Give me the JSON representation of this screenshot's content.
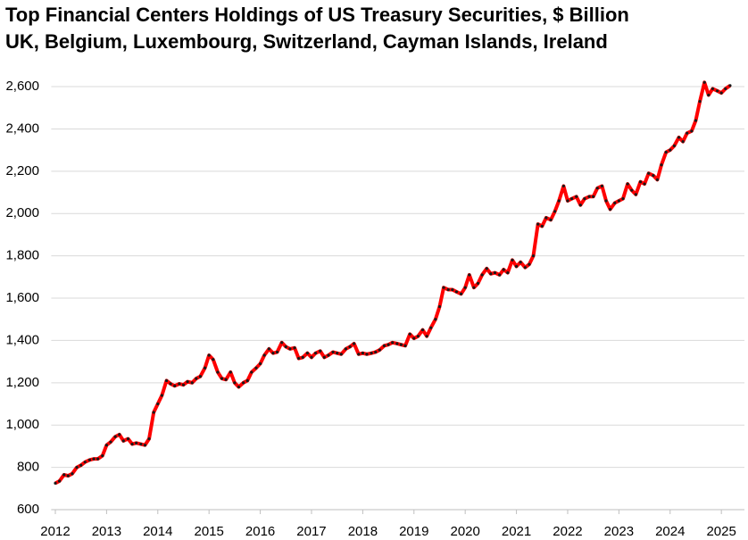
{
  "chart_data": {
    "type": "line",
    "title": "Top Financial Centers Holdings of US Treasury Securities, $ Billion",
    "subtitle": "UK, Belgium, Luxembourg, Switzerland, Cayman Islands, Ireland",
    "x": [
      2012,
      2012.08,
      2012.17,
      2012.25,
      2012.33,
      2012.42,
      2012.5,
      2012.58,
      2012.67,
      2012.75,
      2012.83,
      2012.92,
      2013,
      2013.08,
      2013.17,
      2013.25,
      2013.33,
      2013.42,
      2013.5,
      2013.58,
      2013.67,
      2013.75,
      2013.83,
      2013.92,
      2014,
      2014.08,
      2014.17,
      2014.25,
      2014.33,
      2014.42,
      2014.5,
      2014.58,
      2014.67,
      2014.75,
      2014.83,
      2014.92,
      2015,
      2015.08,
      2015.17,
      2015.25,
      2015.33,
      2015.42,
      2015.5,
      2015.58,
      2015.67,
      2015.75,
      2015.83,
      2015.92,
      2016,
      2016.08,
      2016.17,
      2016.25,
      2016.33,
      2016.42,
      2016.5,
      2016.58,
      2016.67,
      2016.75,
      2016.83,
      2016.92,
      2017,
      2017.08,
      2017.17,
      2017.25,
      2017.33,
      2017.42,
      2017.5,
      2017.58,
      2017.67,
      2017.75,
      2017.83,
      2017.92,
      2018,
      2018.08,
      2018.17,
      2018.25,
      2018.33,
      2018.42,
      2018.5,
      2018.58,
      2018.67,
      2018.75,
      2018.83,
      2018.92,
      2019,
      2019.08,
      2019.17,
      2019.25,
      2019.33,
      2019.42,
      2019.5,
      2019.58,
      2019.67,
      2019.75,
      2019.83,
      2019.92,
      2020,
      2020.08,
      2020.17,
      2020.25,
      2020.33,
      2020.42,
      2020.5,
      2020.58,
      2020.67,
      2020.75,
      2020.83,
      2020.92,
      2021,
      2021.08,
      2021.17,
      2021.25,
      2021.33,
      2021.42,
      2021.5,
      2021.58,
      2021.67,
      2021.75,
      2021.83,
      2021.92,
      2022,
      2022.08,
      2022.17,
      2022.25,
      2022.33,
      2022.42,
      2022.5,
      2022.58,
      2022.67,
      2022.75,
      2022.83,
      2022.92,
      2023,
      2023.08,
      2023.17,
      2023.25,
      2023.33,
      2023.42,
      2023.5,
      2023.58,
      2023.67,
      2023.75,
      2023.83,
      2023.92,
      2024,
      2024.08,
      2024.17,
      2024.25,
      2024.33,
      2024.42,
      2024.5,
      2024.58,
      2024.67,
      2024.75,
      2024.83,
      2024.92,
      2025,
      2025.08,
      2025.17
    ],
    "series": [
      {
        "color": "#ff0000",
        "marker_color": "#1a1a1a",
        "values": [
          725,
          735,
          765,
          760,
          770,
          800,
          810,
          825,
          835,
          840,
          840,
          855,
          905,
          920,
          945,
          955,
          925,
          935,
          910,
          915,
          910,
          905,
          935,
          1060,
          1100,
          1140,
          1210,
          1195,
          1185,
          1195,
          1190,
          1205,
          1200,
          1220,
          1230,
          1270,
          1330,
          1310,
          1250,
          1220,
          1215,
          1250,
          1200,
          1180,
          1200,
          1210,
          1250,
          1270,
          1290,
          1330,
          1360,
          1340,
          1345,
          1390,
          1370,
          1360,
          1365,
          1315,
          1320,
          1340,
          1320,
          1340,
          1350,
          1320,
          1330,
          1345,
          1340,
          1335,
          1360,
          1370,
          1385,
          1335,
          1340,
          1335,
          1340,
          1345,
          1355,
          1375,
          1380,
          1390,
          1385,
          1380,
          1375,
          1430,
          1410,
          1420,
          1450,
          1420,
          1460,
          1500,
          1560,
          1650,
          1640,
          1640,
          1630,
          1620,
          1650,
          1710,
          1650,
          1670,
          1710,
          1740,
          1715,
          1720,
          1710,
          1735,
          1720,
          1780,
          1750,
          1770,
          1745,
          1760,
          1800,
          1950,
          1940,
          1980,
          1970,
          2010,
          2060,
          2130,
          2060,
          2070,
          2080,
          2040,
          2070,
          2080,
          2080,
          2120,
          2130,
          2060,
          2020,
          2050,
          2060,
          2070,
          2140,
          2110,
          2090,
          2150,
          2140,
          2190,
          2180,
          2160,
          2230,
          2290,
          2300,
          2320,
          2360,
          2340,
          2380,
          2390,
          2440,
          2530,
          2620,
          2560,
          2590,
          2580,
          2570,
          2590,
          2605
        ]
      }
    ],
    "xlim": [
      2011.92,
      2025.45
    ],
    "xticks": [
      2012,
      2013,
      2014,
      2015,
      2016,
      2017,
      2018,
      2019,
      2020,
      2021,
      2022,
      2023,
      2024,
      2025
    ],
    "ylim": [
      600,
      2650
    ],
    "yticks": [
      600,
      800,
      {
        "value": 1000,
        "label": "1,000"
      },
      {
        "value": 1200,
        "label": "1,200"
      },
      {
        "value": 1400,
        "label": "1,400"
      },
      {
        "value": 1600,
        "label": "1,600"
      },
      {
        "value": 1800,
        "label": "1,800"
      },
      {
        "value": 2000,
        "label": "2,000"
      },
      {
        "value": 2200,
        "label": "2,200"
      },
      {
        "value": 2400,
        "label": "2,400"
      },
      {
        "value": 2600,
        "label": "2,600"
      }
    ],
    "grid": true
  }
}
